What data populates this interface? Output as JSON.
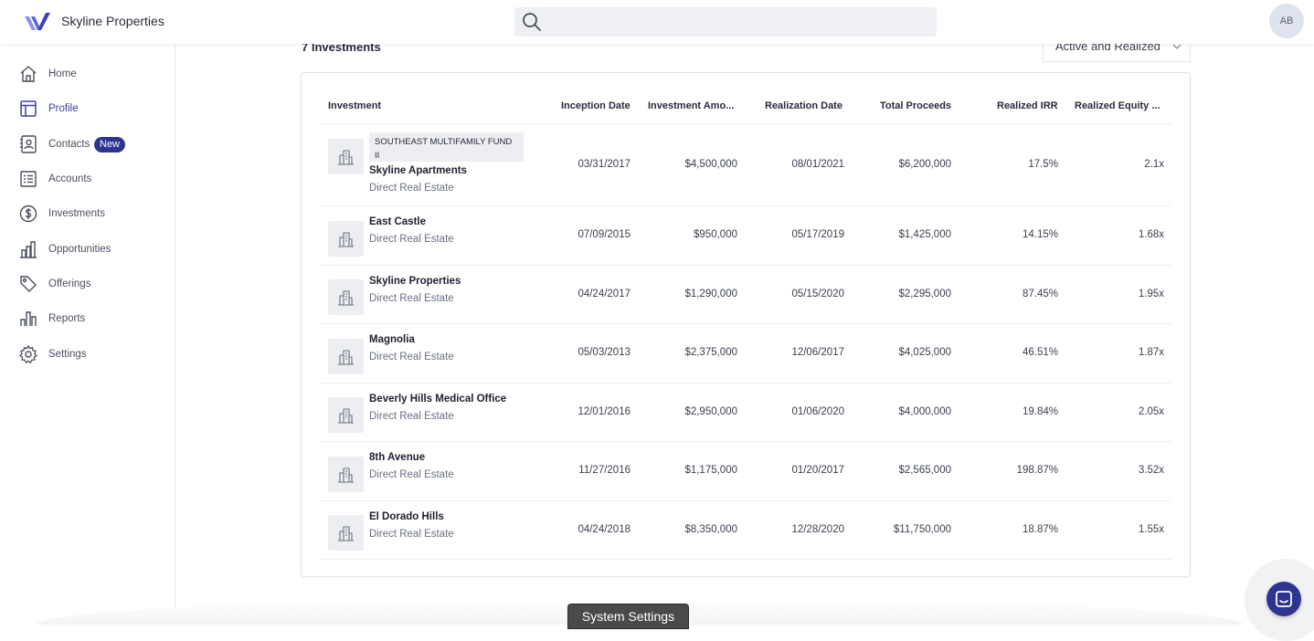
{
  "header": {
    "app_title": "Skyline Properties",
    "search_placeholder": "",
    "avatar_initials": "AB"
  },
  "sidebar": {
    "items": [
      {
        "label": "Home",
        "icon": "home-icon"
      },
      {
        "label": "Profile",
        "icon": "profile-icon"
      },
      {
        "label": "Contacts",
        "icon": "contacts-icon",
        "badge": "New"
      },
      {
        "label": "Accounts",
        "icon": "accounts-icon"
      },
      {
        "label": "Investments",
        "icon": "dollar-icon"
      },
      {
        "label": "Opportunities",
        "icon": "building-chart-icon"
      },
      {
        "label": "Offerings",
        "icon": "tag-icon"
      },
      {
        "label": "Reports",
        "icon": "bar-chart-icon"
      },
      {
        "label": "Settings",
        "icon": "gear-icon"
      }
    ]
  },
  "main": {
    "count_label": "7 Investments",
    "filter_value": "Active and Realized",
    "columns": [
      "Investment",
      "Inception Date",
      "Investment Amo...",
      "Realization Date",
      "Total Proceeds",
      "Realized IRR",
      "Realized Equity ..."
    ],
    "rows": [
      {
        "fund": "SOUTHEAST MULTIFAMILY FUND II",
        "name": "Skyline Apartments",
        "type": "Direct Real Estate",
        "inception": "03/31/2017",
        "amount": "$4,500,000",
        "realization": "08/01/2021",
        "proceeds": "$6,200,000",
        "irr": "17.5%",
        "multiple": "2.1x"
      },
      {
        "name": "East Castle",
        "type": "Direct Real Estate",
        "inception": "07/09/2015",
        "amount": "$950,000",
        "realization": "05/17/2019",
        "proceeds": "$1,425,000",
        "irr": "14.15%",
        "multiple": "1.68x"
      },
      {
        "name": "Skyline Properties",
        "type": "Direct Real Estate",
        "inception": "04/24/2017",
        "amount": "$1,290,000",
        "realization": "05/15/2020",
        "proceeds": "$2,295,000",
        "irr": "87.45%",
        "multiple": "1.95x"
      },
      {
        "name": "Magnolia",
        "type": "Direct Real Estate",
        "inception": "05/03/2013",
        "amount": "$2,375,000",
        "realization": "12/06/2017",
        "proceeds": "$4,025,000",
        "irr": "46.51%",
        "multiple": "1.87x"
      },
      {
        "name": "Beverly Hills Medical Office",
        "type": "Direct Real Estate",
        "inception": "12/01/2016",
        "amount": "$2,950,000",
        "realization": "01/06/2020",
        "proceeds": "$4,000,000",
        "irr": "19.84%",
        "multiple": "2.05x"
      },
      {
        "name": "8th Avenue",
        "type": "Direct Real Estate",
        "inception": "11/27/2016",
        "amount": "$1,175,000",
        "realization": "01/20/2017",
        "proceeds": "$2,565,000",
        "irr": "198.87%",
        "multiple": "3.52x"
      },
      {
        "name": "El Dorado Hills",
        "type": "Direct Real Estate",
        "inception": "04/24/2018",
        "amount": "$8,350,000",
        "realization": "12/28/2020",
        "proceeds": "$11,750,000",
        "irr": "18.87%",
        "multiple": "1.55x"
      }
    ]
  },
  "footer": {
    "system_settings_label": "System Settings"
  },
  "colors": {
    "brand": "#2e3590",
    "accent_logo": "#4f5bd5"
  }
}
